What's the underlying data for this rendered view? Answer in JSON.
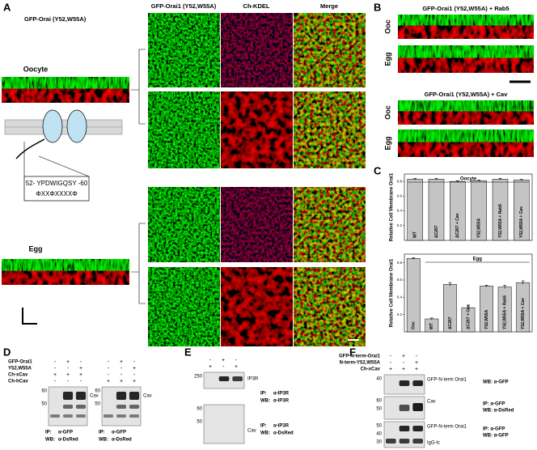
{
  "figure": {
    "A": {
      "label": "A",
      "construct": "GFP-Orai (Y52,W55A)",
      "columns": [
        "GFP-Orai1 (Y52,W55A)",
        "Ch-KDEL",
        "Merge"
      ],
      "rows": [
        "Oocyte",
        "Egg"
      ],
      "motif": {
        "sequence": "52- YPDWIGQSY -60",
        "pattern": "ΦXXΦXXXXΦ"
      }
    },
    "B": {
      "label": "B",
      "panels": [
        {
          "title": "GFP-Orai1 (Y52,W55A) + Rab5",
          "rows": [
            "Ooc",
            "Egg"
          ]
        },
        {
          "title": "GFP-Orai1 (Y52,W55A) + Cav",
          "rows": [
            "Ooc",
            "Egg"
          ]
        }
      ]
    },
    "C": {
      "label": "C"
    },
    "D": {
      "label": "D",
      "reagents": [
        "GFP-Orai1",
        "Y52,W55A",
        "Ch-xCav",
        "Ch-hCav"
      ],
      "blots": [
        {
          "signs": [
            [
              "-",
              "+",
              "-"
            ],
            [
              "-",
              "-",
              "+"
            ],
            [
              "+",
              "+",
              "+"
            ],
            [
              "-",
              "-",
              "-"
            ]
          ],
          "markers": [
            60,
            50
          ],
          "band": "Cav",
          "ip": "IP:",
          "ip_antibody": "α-GFP",
          "wb": "WB:",
          "wb_antibody": "α-DsRed"
        },
        {
          "signs": [
            [
              "-",
              "+",
              "-"
            ],
            [
              "-",
              "-",
              "+"
            ],
            [
              "-",
              "-",
              "-"
            ],
            [
              "+",
              "+",
              "+"
            ]
          ],
          "markers": [
            60,
            50
          ],
          "band": "Cav",
          "ip": "IP:",
          "ip_antibody": "α-GFP",
          "wb": "WB:",
          "wb_antibody": "α-DsRed"
        }
      ]
    },
    "E": {
      "label": "E",
      "signs": [
        [
          "-",
          "+",
          "-"
        ],
        [
          "+",
          "-",
          "+"
        ]
      ],
      "blots": [
        {
          "markers": [
            250
          ],
          "band": "IP3R",
          "ip": "IP:",
          "ip_antibody": "α-IP3R",
          "wb": "WB:",
          "wb_antibody": "α-IP3R"
        },
        {
          "markers": [
            60,
            50
          ],
          "band": "Cav",
          "ip": "IP:",
          "ip_antibody": "α-IP3R",
          "wb": "WB:",
          "wb_antibody": "α-DsRed"
        }
      ]
    },
    "F": {
      "label": "F",
      "reagents": [
        "GFP-N-term-Orai1",
        "N-term-Y52,W55A",
        "Ch-xCav"
      ],
      "signs": [
        [
          "-",
          "+",
          "-"
        ],
        [
          "-",
          "-",
          "+"
        ],
        [
          "+",
          "+",
          "+"
        ]
      ],
      "blots": [
        {
          "markers": [
            40
          ],
          "bands": [
            "GFP-N-term Orai1"
          ],
          "lines": [
            "WB: α-GFP"
          ]
        },
        {
          "markers": [
            60,
            50
          ],
          "bands": [
            "Cav"
          ],
          "lines": [
            "IP:   α-GFP",
            "WB: α-DsRed"
          ]
        },
        {
          "markers": [
            50,
            40,
            30
          ],
          "bands": [
            "GFP-N-term Orai1",
            "IgG-lc"
          ],
          "lines": [
            "IP:   α-GFP",
            "WB: α-GFP"
          ]
        }
      ]
    }
  },
  "chart_data": [
    {
      "type": "bar",
      "group_label": "Oocyte",
      "y_label": "Relative Cell Membrane Orai1",
      "categories": [
        "WT",
        "ΔC267",
        "ΔC267 + Cav",
        "Y52,W55A",
        "Y52,W55A + Rab5",
        "Y52,W55A + Cav"
      ],
      "values": [
        0.83,
        0.83,
        0.8,
        0.81,
        0.83,
        0.82
      ],
      "errors": [
        0.01,
        0.01,
        0.01,
        0.01,
        0.01,
        0.01
      ],
      "color": "#c4c4c4",
      "ylim": [
        0,
        0.9
      ],
      "yticks": [
        0.2,
        0.4,
        0.6,
        0.8
      ]
    },
    {
      "type": "bar",
      "group_label": "Egg",
      "y_label": "Relative Cell Membrane Orai1",
      "categories": [
        "Ooc",
        "WT",
        "ΔC267",
        "ΔC267 + Cav",
        "Y52,W55A",
        "Y52,W55A + Rab5",
        "Y52,W55A + Cav"
      ],
      "values": [
        0.85,
        0.15,
        0.55,
        0.28,
        0.53,
        0.52,
        0.57
      ],
      "errors": [
        0.01,
        0.01,
        0.02,
        0.03,
        0.01,
        0.02,
        0.02
      ],
      "color": "#c4c4c4",
      "ylim": [
        0,
        0.9
      ],
      "yticks": [
        0.2,
        0.4,
        0.6,
        0.8
      ]
    }
  ]
}
